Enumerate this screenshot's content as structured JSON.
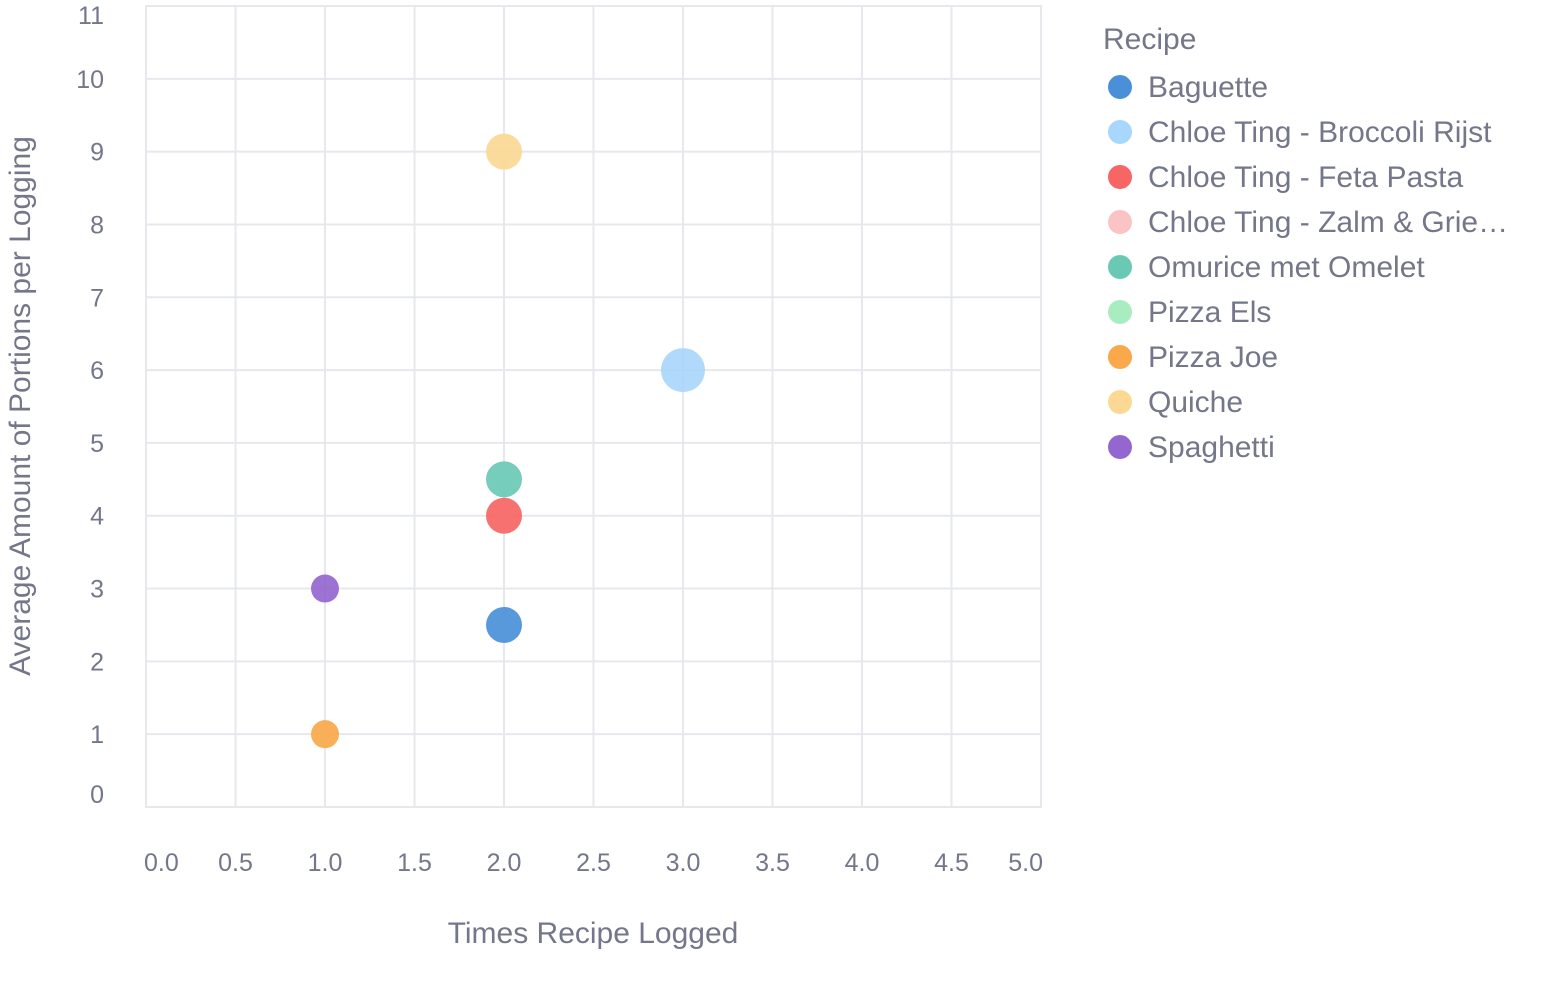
{
  "chart_data": {
    "type": "scatter",
    "title": "",
    "xlabel": "Times Recipe Logged",
    "ylabel": "Average Amount of Portions per Logging",
    "xlim": [
      0,
      5
    ],
    "ylim": [
      0,
      11
    ],
    "x_ticks": [
      "0.0",
      "0.5",
      "1.0",
      "1.5",
      "2.0",
      "2.5",
      "3.0",
      "3.5",
      "4.0",
      "4.5",
      "5.0"
    ],
    "y_ticks": [
      "0",
      "1",
      "2",
      "3",
      "4",
      "5",
      "6",
      "7",
      "8",
      "9",
      "10",
      "11"
    ],
    "grid": true,
    "legend": {
      "title": "Recipe",
      "placement": "right"
    },
    "series": [
      {
        "name": "Baguette",
        "color": "#4a90d9",
        "points": [
          {
            "x": 2,
            "y": 2.5
          }
        ],
        "size": "medium"
      },
      {
        "name": "Chloe Ting - Broccoli Rijst",
        "color": "#a9d6fb",
        "points": [
          {
            "x": 3,
            "y": 6
          }
        ],
        "size": "large"
      },
      {
        "name": "Chloe Ting - Feta Pasta",
        "color": "#f76565",
        "points": [
          {
            "x": 2,
            "y": 4
          }
        ],
        "size": "medium"
      },
      {
        "name": "Chloe Ting - Zalm & Grie…",
        "color": "#fbc4c4",
        "points": [],
        "size": "medium"
      },
      {
        "name": "Omurice met Omelet",
        "color": "#6ac9b5",
        "points": [
          {
            "x": 2,
            "y": 4.5
          }
        ],
        "size": "medium"
      },
      {
        "name": "Pizza Els",
        "color": "#a8ecc0",
        "points": [],
        "size": "medium"
      },
      {
        "name": "Pizza Joe",
        "color": "#f9a84a",
        "points": [
          {
            "x": 1,
            "y": 1
          }
        ],
        "size": "small"
      },
      {
        "name": "Quiche",
        "color": "#fbd894",
        "points": [
          {
            "x": 2,
            "y": 9
          }
        ],
        "size": "medium"
      },
      {
        "name": "Spaghetti",
        "color": "#9466cf",
        "points": [
          {
            "x": 1,
            "y": 3
          }
        ],
        "size": "small"
      }
    ]
  }
}
